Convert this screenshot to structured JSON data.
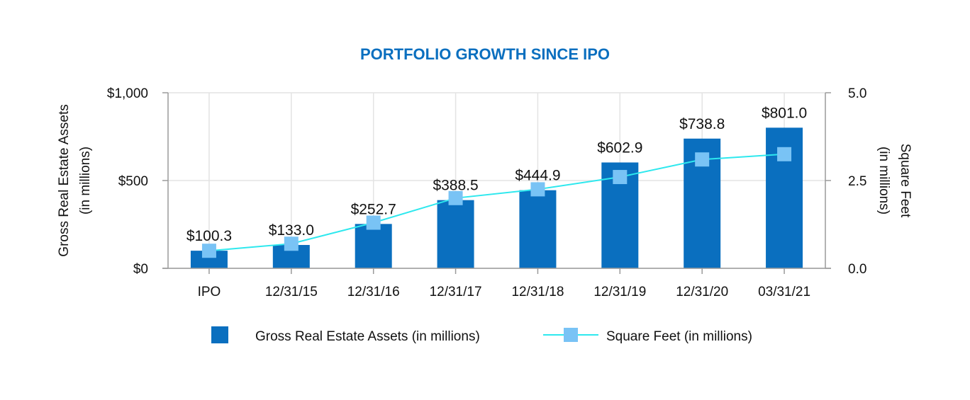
{
  "colors": {
    "bar": "#0a6fbf",
    "line": "#2ee8ee",
    "marker": "#79c3f5",
    "title": "#0a6fbf",
    "grid": "#e3e3e3",
    "axis": "#9a9a9a"
  },
  "chart_data": {
    "type": "bar",
    "title": "PORTFOLIO GROWTH SINCE IPO",
    "categories": [
      "IPO",
      "12/31/15",
      "12/31/16",
      "12/31/17",
      "12/31/18",
      "12/31/19",
      "12/31/20",
      "03/31/21"
    ],
    "series": [
      {
        "name": "Gross Real Estate Assets (in millions)",
        "type": "bar",
        "axis": "left",
        "values": [
          100.3,
          133.0,
          252.7,
          388.5,
          444.9,
          602.9,
          738.8,
          801.0
        ],
        "labels": [
          "$100.3",
          "$133.0",
          "$252.7",
          "$388.5",
          "$444.9",
          "$602.9",
          "$738.8",
          "$801.0"
        ]
      },
      {
        "name": "Square Feet (in millions)",
        "type": "line",
        "axis": "right",
        "values": [
          0.5,
          0.7,
          1.3,
          2.0,
          2.25,
          2.6,
          3.1,
          3.25
        ]
      }
    ],
    "y_left": {
      "label_line1": "Gross Real Estate Assets",
      "label_line2": "(in millions)",
      "ylim": [
        0,
        1000
      ],
      "ticks": [
        0,
        500,
        1000
      ],
      "tick_labels": [
        "$0",
        "$500",
        "$1,000"
      ]
    },
    "y_right": {
      "label_line1": "Square Feet",
      "label_line2": "(in millions)",
      "ylim": [
        0,
        5
      ],
      "ticks": [
        0,
        2.5,
        5
      ],
      "tick_labels": [
        "0.0",
        "2.5",
        "5.0"
      ]
    },
    "grid": true,
    "legend_position": "bottom"
  }
}
